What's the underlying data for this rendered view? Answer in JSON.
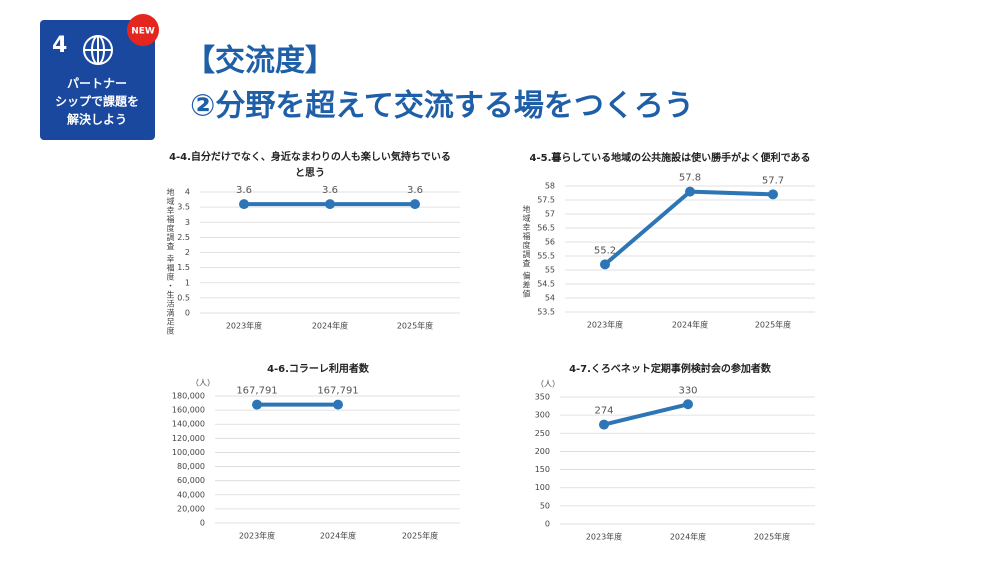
{
  "header": {
    "badge_number": "4",
    "badge_lines": [
      "パートナー",
      "シップで課題を",
      "解決しよう"
    ],
    "badge_new": "NEW",
    "title": "【交流度】",
    "subtitle": "②分野を超えて交流する場をつくろう"
  },
  "chart_data": [
    {
      "type": "line",
      "title": "4-4.自分だけでなく、身近なまわりの人も楽しい気持ちでいると思う",
      "y_label": "地域幸福度調査 幸福度・生活満足度",
      "color": "#2e75b6",
      "grid": true,
      "categories": [
        "2023年度",
        "2024年度",
        "2025年度"
      ],
      "values": [
        3.6,
        3.6,
        3.6
      ],
      "ylim": [
        0,
        4
      ],
      "yticks": [
        0,
        0.5,
        1,
        1.5,
        2,
        2.5,
        3,
        3.5,
        4
      ]
    },
    {
      "type": "line",
      "title": "4-5.暮らしている地域の公共施設は使い勝手がよく便利である",
      "y_label": "地域幸福度調査 偏差値",
      "color": "#2e75b6",
      "grid": true,
      "categories": [
        "2023年度",
        "2024年度",
        "2025年度"
      ],
      "values": [
        55.2,
        57.8,
        57.7
      ],
      "ylim": [
        53.5,
        58
      ],
      "yticks": [
        53.5,
        54,
        54.5,
        55,
        55.5,
        56,
        56.5,
        57,
        57.5,
        58
      ]
    },
    {
      "type": "line",
      "title": "4-6.コラーレ利用者数",
      "unit": "（人）",
      "color": "#2e75b6",
      "grid": true,
      "categories": [
        "2023年度",
        "2024年度",
        "2025年度"
      ],
      "values": [
        167791,
        167791,
        null
      ],
      "value_labels": [
        "167,791",
        "167,791",
        null
      ],
      "ylim": [
        0,
        180000
      ],
      "yticks": [
        0,
        {
          "value": 20000,
          "label": "20,000"
        },
        {
          "value": 40000,
          "label": "40,000"
        },
        {
          "value": 60000,
          "label": "60,000"
        },
        {
          "value": 80000,
          "label": "80,000"
        },
        {
          "value": 100000,
          "label": "100,000"
        },
        {
          "value": 120000,
          "label": "120,000"
        },
        {
          "value": 140000,
          "label": "140,000"
        },
        {
          "value": 160000,
          "label": "160,000"
        },
        {
          "value": 180000,
          "label": "180,000"
        }
      ]
    },
    {
      "type": "line",
      "title": "4-7.くろべネット定期事例検討会の参加者数",
      "unit": "（人）",
      "color": "#2e75b6",
      "grid": true,
      "categories": [
        "2023年度",
        "2024年度",
        "2025年度"
      ],
      "values": [
        274,
        330,
        null
      ],
      "ylim": [
        0,
        350
      ],
      "yticks": [
        0,
        50,
        100,
        150,
        200,
        250,
        300,
        350
      ]
    }
  ]
}
